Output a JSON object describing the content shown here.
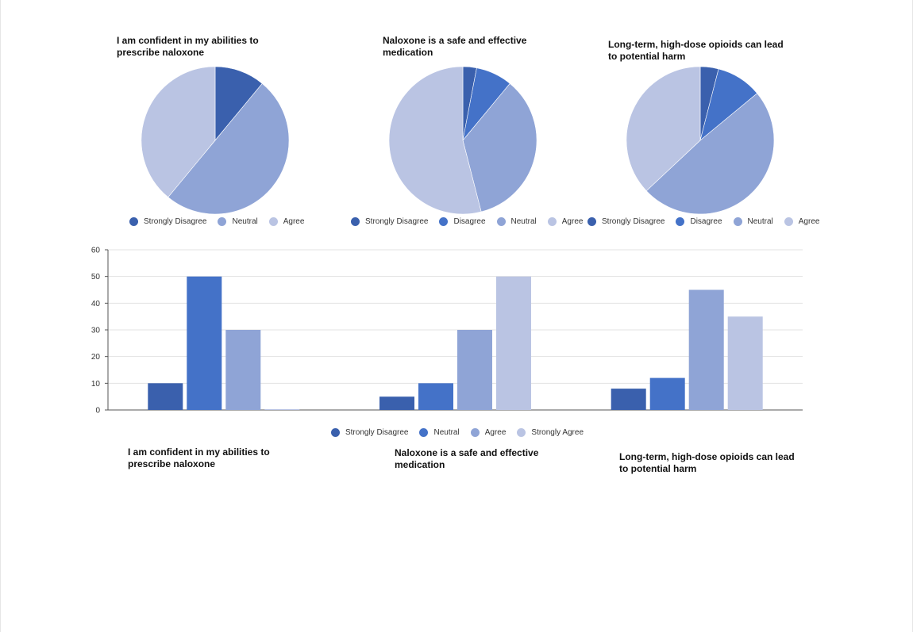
{
  "colors": {
    "strongly_disagree": "#3a60ad",
    "c2": "#4472c8",
    "c3": "#8fa4d6",
    "c4": "#bac4e3"
  },
  "chart_data": [
    {
      "type": "pie",
      "title": "I am confident in my abilities to prescribe naloxone",
      "slices": [
        {
          "label": "Strongly Disagree",
          "value": 11
        },
        {
          "label": "Neutral",
          "value": 50
        },
        {
          "label": "Agree",
          "value": 39
        }
      ],
      "legend": [
        "Strongly Disagree",
        "Neutral",
        "Agree"
      ],
      "legend_position": "bottom"
    },
    {
      "type": "pie",
      "title": "Naloxone is a safe and effective medication",
      "slices": [
        {
          "label": "Strongly Disagree",
          "value": 3
        },
        {
          "label": "Disagree",
          "value": 8
        },
        {
          "label": "Neutral",
          "value": 35
        },
        {
          "label": "Agree",
          "value": 54
        }
      ],
      "legend": [
        "Strongly Disagree",
        "Disagree",
        "Neutral",
        "Agree"
      ],
      "legend_position": "bottom"
    },
    {
      "type": "pie",
      "title": "Long-term, high-dose opioids can lead to potential harm",
      "slices": [
        {
          "label": "Strongly Disagree",
          "value": 4
        },
        {
          "label": "Disagree",
          "value": 10
        },
        {
          "label": "Neutral",
          "value": 49
        },
        {
          "label": "Agree",
          "value": 37
        }
      ],
      "legend": [
        "Strongly Disagree",
        "Disagree",
        "Neutral",
        "Agree"
      ],
      "legend_position": "bottom"
    },
    {
      "type": "bar",
      "categories": [
        "I am confident in my abilities to prescribe naloxone",
        "Naloxone is a safe and effective medication",
        "Long-term, high-dose opioids can lead to potential harm"
      ],
      "series": [
        {
          "name": "Strongly Disagree",
          "values": [
            10,
            5,
            8
          ]
        },
        {
          "name": "Neutral",
          "values": [
            50,
            10,
            12
          ]
        },
        {
          "name": "Agree",
          "values": [
            30,
            30,
            45
          ]
        },
        {
          "name": "Strongly Agree",
          "values": [
            0,
            50,
            35
          ]
        }
      ],
      "ylim": [
        0,
        60
      ],
      "yticks": [
        0,
        10,
        20,
        30,
        40,
        50,
        60
      ],
      "grid": true,
      "legend_position": "bottom"
    }
  ]
}
